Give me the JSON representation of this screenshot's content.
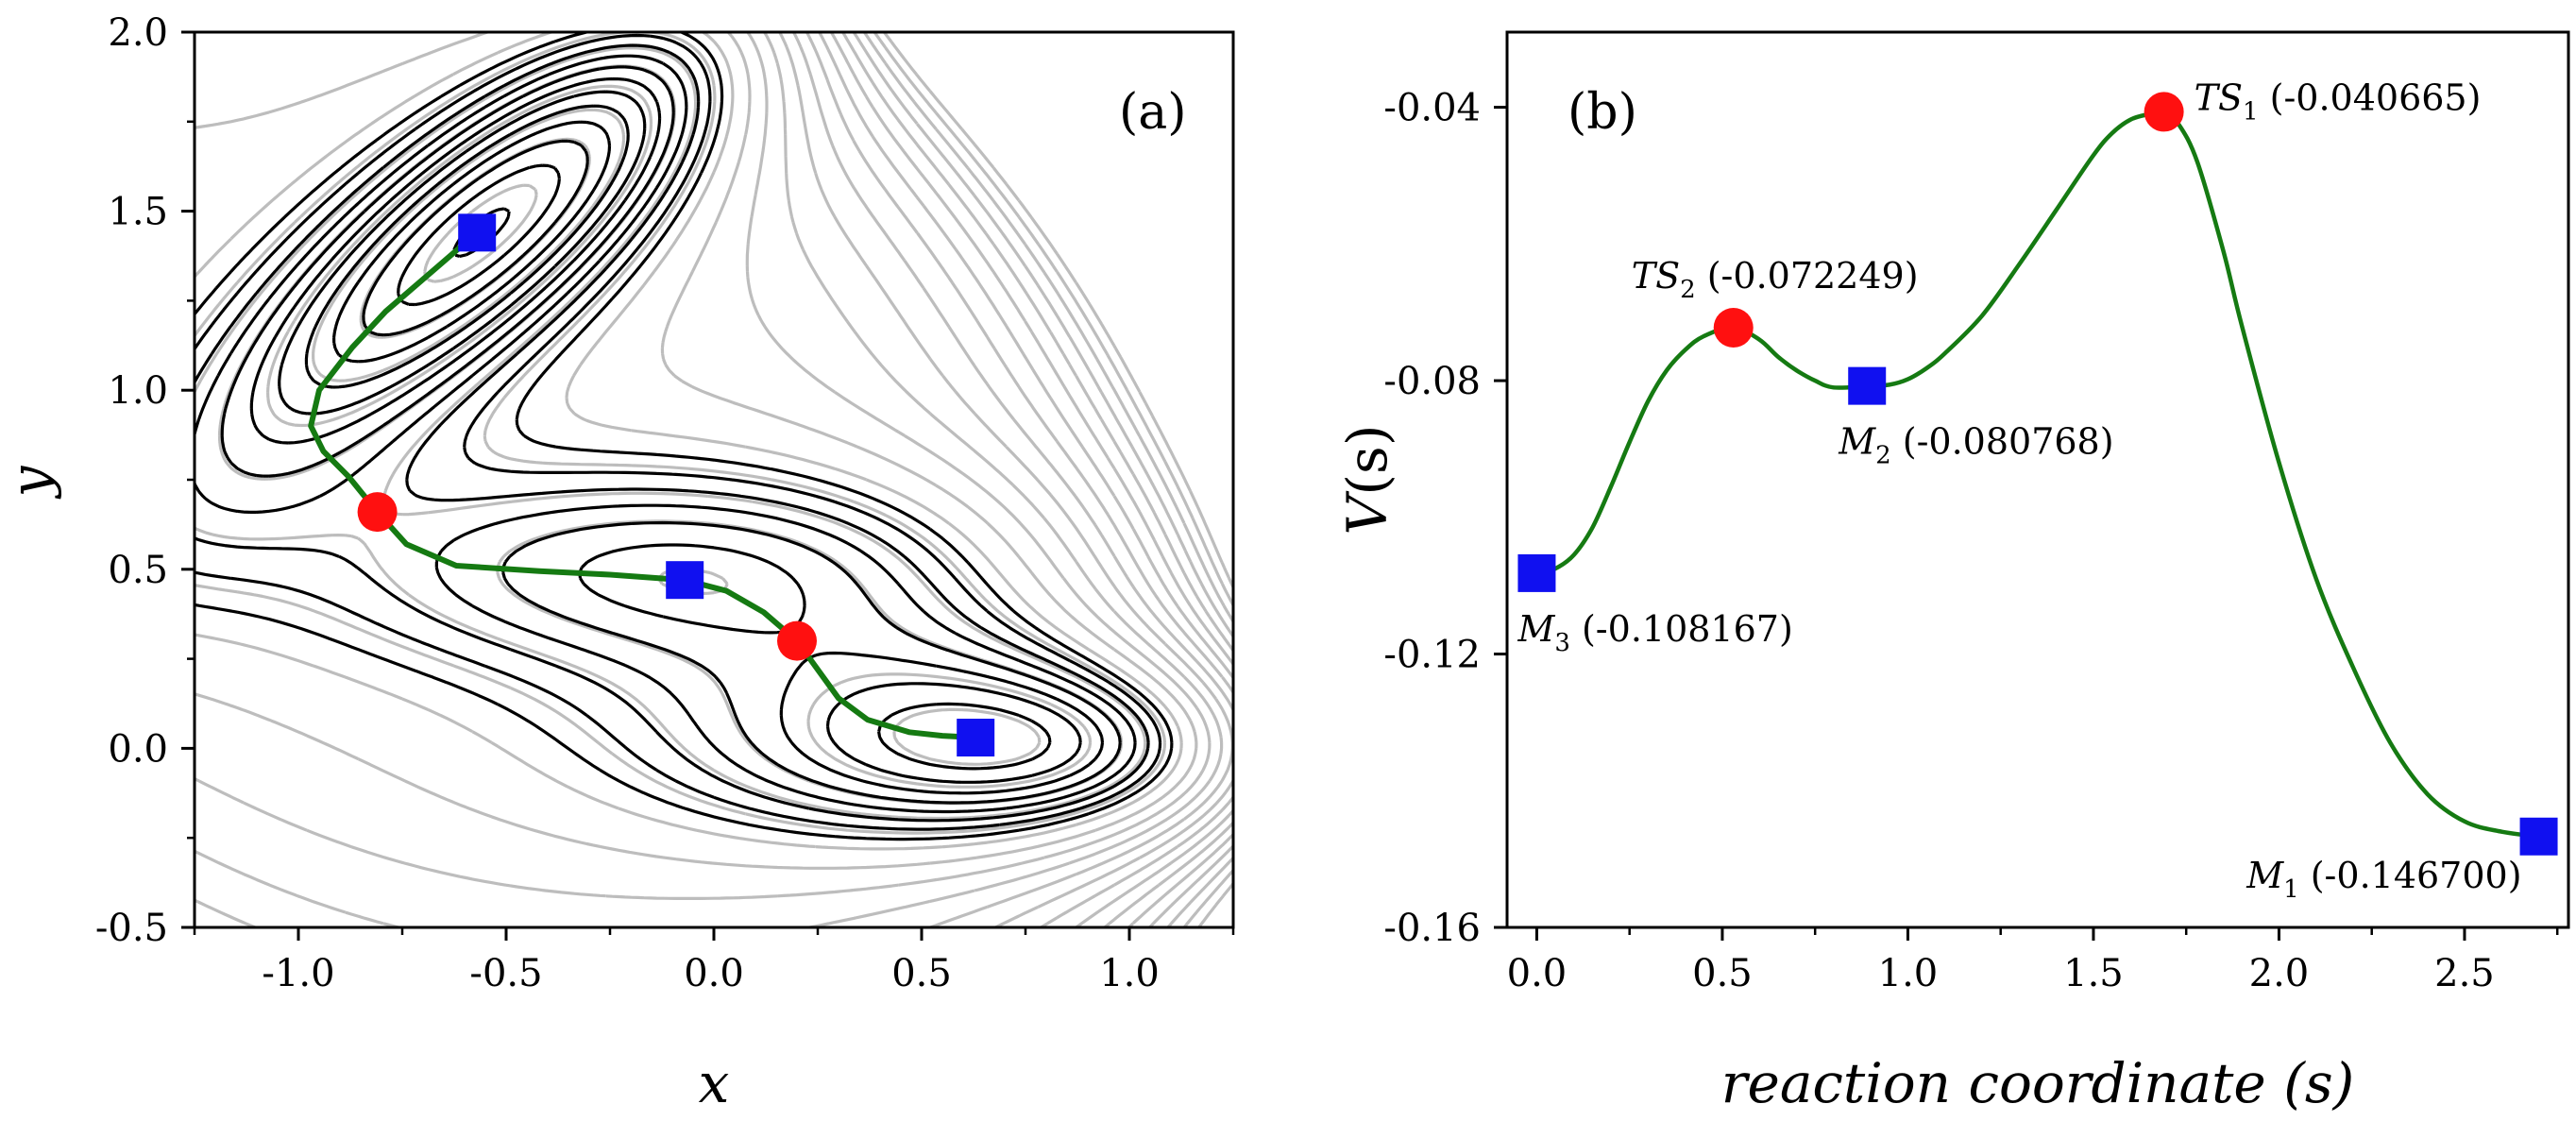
{
  "chart_data": [
    {
      "id": "a",
      "type": "contour",
      "panel_label": "(a)",
      "xlabel": "x",
      "ylabel": "y",
      "xlim": [
        -1.25,
        1.25
      ],
      "ylim": [
        -0.5,
        2.0
      ],
      "xticks": [
        "-1.0",
        "-0.5",
        "0.0",
        "0.5",
        "1.0"
      ],
      "xtick_values": [
        -1.0,
        -0.5,
        0.0,
        0.5,
        1.0
      ],
      "yticks": [
        "-0.5",
        "0.0",
        "0.5",
        "1.0",
        "1.5",
        "2.0"
      ],
      "ytick_values": [
        -0.5,
        0.0,
        0.5,
        1.0,
        1.5,
        2.0
      ],
      "minima": [
        {
          "x": -0.57,
          "y": 1.44
        },
        {
          "x": -0.07,
          "y": 0.47
        },
        {
          "x": 0.63,
          "y": 0.03
        }
      ],
      "saddles": [
        {
          "x": -0.81,
          "y": 0.66
        },
        {
          "x": 0.2,
          "y": 0.3
        }
      ],
      "path": [
        [
          -0.57,
          1.44
        ],
        [
          -0.68,
          1.33
        ],
        [
          -0.79,
          1.22
        ],
        [
          -0.87,
          1.12
        ],
        [
          -0.95,
          1.0
        ],
        [
          -0.97,
          0.9
        ],
        [
          -0.94,
          0.83
        ],
        [
          -0.88,
          0.76
        ],
        [
          -0.81,
          0.66
        ],
        [
          -0.74,
          0.57
        ],
        [
          -0.62,
          0.51
        ],
        [
          -0.42,
          0.495
        ],
        [
          -0.25,
          0.485
        ],
        [
          -0.07,
          0.47
        ],
        [
          0.03,
          0.44
        ],
        [
          0.12,
          0.38
        ],
        [
          0.2,
          0.3
        ],
        [
          0.25,
          0.22
        ],
        [
          0.3,
          0.14
        ],
        [
          0.37,
          0.08
        ],
        [
          0.47,
          0.045
        ],
        [
          0.55,
          0.035
        ],
        [
          0.63,
          0.03
        ]
      ],
      "colors": {
        "path": "#157a12",
        "minimum": "#1010f0",
        "saddle": "#ff1010",
        "dark_contour": "#000000",
        "light_contour": "#bdbdbd"
      }
    },
    {
      "id": "b",
      "type": "line",
      "panel_label": "(b)",
      "xlabel": "reaction coordinate (s)",
      "ylabel_main": "V",
      "ylabel_arg": "(s)",
      "xlim": [
        -0.08,
        2.78
      ],
      "ylim": [
        -0.16,
        -0.029
      ],
      "xticks": [
        "0.0",
        "0.5",
        "1.0",
        "1.5",
        "2.0",
        "2.5"
      ],
      "xtick_values": [
        0.0,
        0.5,
        1.0,
        1.5,
        2.0,
        2.5
      ],
      "yticks": [
        "-0.04",
        "-0.08",
        "-0.12",
        "-0.16"
      ],
      "ytick_values": [
        -0.04,
        -0.08,
        -0.12,
        -0.16
      ],
      "curve_x": [
        0.0,
        0.05,
        0.1,
        0.15,
        0.2,
        0.25,
        0.3,
        0.35,
        0.4,
        0.45,
        0.53,
        0.6,
        0.65,
        0.7,
        0.75,
        0.8,
        0.89,
        0.95,
        1.0,
        1.05,
        1.1,
        1.2,
        1.3,
        1.4,
        1.5,
        1.55,
        1.6,
        1.65,
        1.69,
        1.73,
        1.78,
        1.85,
        1.9,
        2.0,
        2.1,
        2.2,
        2.3,
        2.4,
        2.5,
        2.6,
        2.7
      ],
      "curve_y": [
        -0.1082,
        -0.1075,
        -0.1055,
        -0.1015,
        -0.0955,
        -0.089,
        -0.083,
        -0.0785,
        -0.0755,
        -0.0735,
        -0.0722,
        -0.074,
        -0.0765,
        -0.0785,
        -0.08,
        -0.081,
        -0.0808,
        -0.0806,
        -0.0798,
        -0.0782,
        -0.076,
        -0.0705,
        -0.063,
        -0.055,
        -0.047,
        -0.0438,
        -0.0418,
        -0.041,
        -0.0407,
        -0.0425,
        -0.048,
        -0.061,
        -0.072,
        -0.092,
        -0.109,
        -0.122,
        -0.133,
        -0.1405,
        -0.1445,
        -0.146,
        -0.1467
      ],
      "points": [
        {
          "label_main": "M",
          "label_sub": "3",
          "value_text": "(-0.108167)",
          "s": 0.0,
          "v": -0.108167,
          "kind": "minimum"
        },
        {
          "label_main": "TS",
          "label_sub": "2",
          "value_text": "(-0.072249)",
          "s": 0.53,
          "v": -0.072249,
          "kind": "saddle"
        },
        {
          "label_main": "M",
          "label_sub": "2",
          "value_text": "(-0.080768)",
          "s": 0.89,
          "v": -0.080768,
          "kind": "minimum"
        },
        {
          "label_main": "TS",
          "label_sub": "1",
          "value_text": "(-0.040665)",
          "s": 1.69,
          "v": -0.040665,
          "kind": "saddle"
        },
        {
          "label_main": "M",
          "label_sub": "1",
          "value_text": "(-0.146700)",
          "s": 2.7,
          "v": -0.1467,
          "kind": "minimum"
        }
      ],
      "colors": {
        "curve": "#157a12",
        "minimum": "#1010f0",
        "saddle": "#ff1010"
      }
    }
  ]
}
